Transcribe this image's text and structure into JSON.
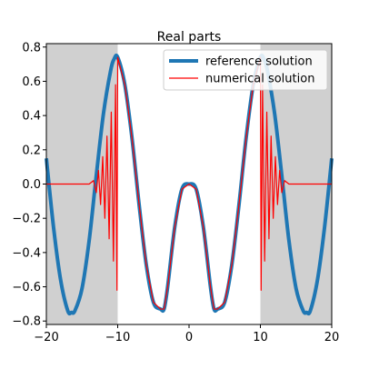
{
  "chart_data": {
    "type": "line",
    "title": "Real parts",
    "xlabel": "",
    "ylabel": "",
    "xlim": [
      -20,
      20
    ],
    "ylim": [
      -0.82,
      0.82
    ],
    "xticks": [
      -20,
      -10,
      0,
      10,
      20
    ],
    "xtick_labels": [
      "−20",
      "−10",
      "0",
      "10",
      "20"
    ],
    "yticks": [
      -0.8,
      -0.6,
      -0.4,
      -0.2,
      0.0,
      0.2,
      0.4,
      0.6,
      0.8
    ],
    "ytick_labels": [
      "−0.8",
      "−0.6",
      "−0.4",
      "−0.2",
      "0.0",
      "0.2",
      "0.4",
      "0.6",
      "0.8"
    ],
    "grid": false,
    "legend_position": "top-right",
    "shaded_regions": [
      {
        "x": [
          -20,
          -10
        ],
        "color": "#d0d0d0"
      },
      {
        "x": [
          10,
          20
        ],
        "color": "#d0d0d0"
      }
    ],
    "series": [
      {
        "name": "reference solution",
        "color": "#1f77b4",
        "x": [
          -20,
          -19,
          -18,
          -17,
          -16.5,
          -16,
          -15,
          -14,
          -13,
          -12,
          -11,
          -10.5,
          -10,
          -9,
          -8,
          -7,
          -6,
          -5,
          -4,
          -3.5,
          -3,
          -2,
          -1,
          0,
          1,
          2,
          3,
          3.5,
          4,
          5,
          6,
          7,
          8,
          9,
          10,
          10.5,
          11,
          12,
          13,
          14,
          15,
          16,
          16.5,
          17,
          18,
          19,
          20
        ],
        "y": [
          0.15,
          -0.25,
          -0.56,
          -0.74,
          -0.75,
          -0.74,
          -0.61,
          -0.33,
          0.05,
          0.41,
          0.66,
          0.73,
          0.74,
          0.58,
          0.27,
          -0.12,
          -0.47,
          -0.69,
          -0.73,
          -0.73,
          -0.6,
          -0.25,
          -0.03,
          0.0,
          -0.03,
          -0.25,
          -0.6,
          -0.73,
          -0.73,
          -0.69,
          -0.47,
          -0.12,
          0.27,
          0.58,
          0.74,
          0.73,
          0.66,
          0.41,
          0.05,
          -0.33,
          -0.61,
          -0.74,
          -0.75,
          -0.74,
          -0.56,
          -0.25,
          0.15
        ]
      },
      {
        "name": "numerical solution",
        "color": "#ff0000",
        "x": [
          -20,
          -15,
          -14,
          -13.4,
          -13.0,
          -12.7,
          -12.4,
          -12.1,
          -11.8,
          -11.5,
          -11.2,
          -10.9,
          -10.6,
          -10.3,
          -10.1,
          -10.0,
          -9,
          -8,
          -7,
          -6,
          -5,
          -4,
          -3.5,
          -3,
          -2,
          -1,
          0,
          1,
          2,
          3,
          3.5,
          4,
          5,
          6,
          7,
          8,
          9,
          10.0,
          10.1,
          10.3,
          10.6,
          10.9,
          11.2,
          11.5,
          11.8,
          12.1,
          12.4,
          12.7,
          13.0,
          13.4,
          14,
          15,
          20
        ],
        "y": [
          0.0,
          0.0,
          0.0,
          0.02,
          -0.05,
          0.08,
          -0.12,
          0.16,
          -0.2,
          0.28,
          -0.32,
          0.42,
          -0.45,
          0.58,
          -0.62,
          0.74,
          0.58,
          0.27,
          -0.12,
          -0.47,
          -0.69,
          -0.73,
          -0.73,
          -0.6,
          -0.25,
          -0.03,
          0.0,
          -0.03,
          -0.25,
          -0.6,
          -0.73,
          -0.73,
          -0.69,
          -0.47,
          -0.12,
          0.27,
          0.58,
          0.74,
          -0.62,
          0.58,
          -0.45,
          0.42,
          -0.32,
          0.28,
          -0.2,
          0.16,
          -0.12,
          0.08,
          -0.05,
          0.02,
          0.0,
          0.0,
          0.0
        ]
      }
    ]
  }
}
